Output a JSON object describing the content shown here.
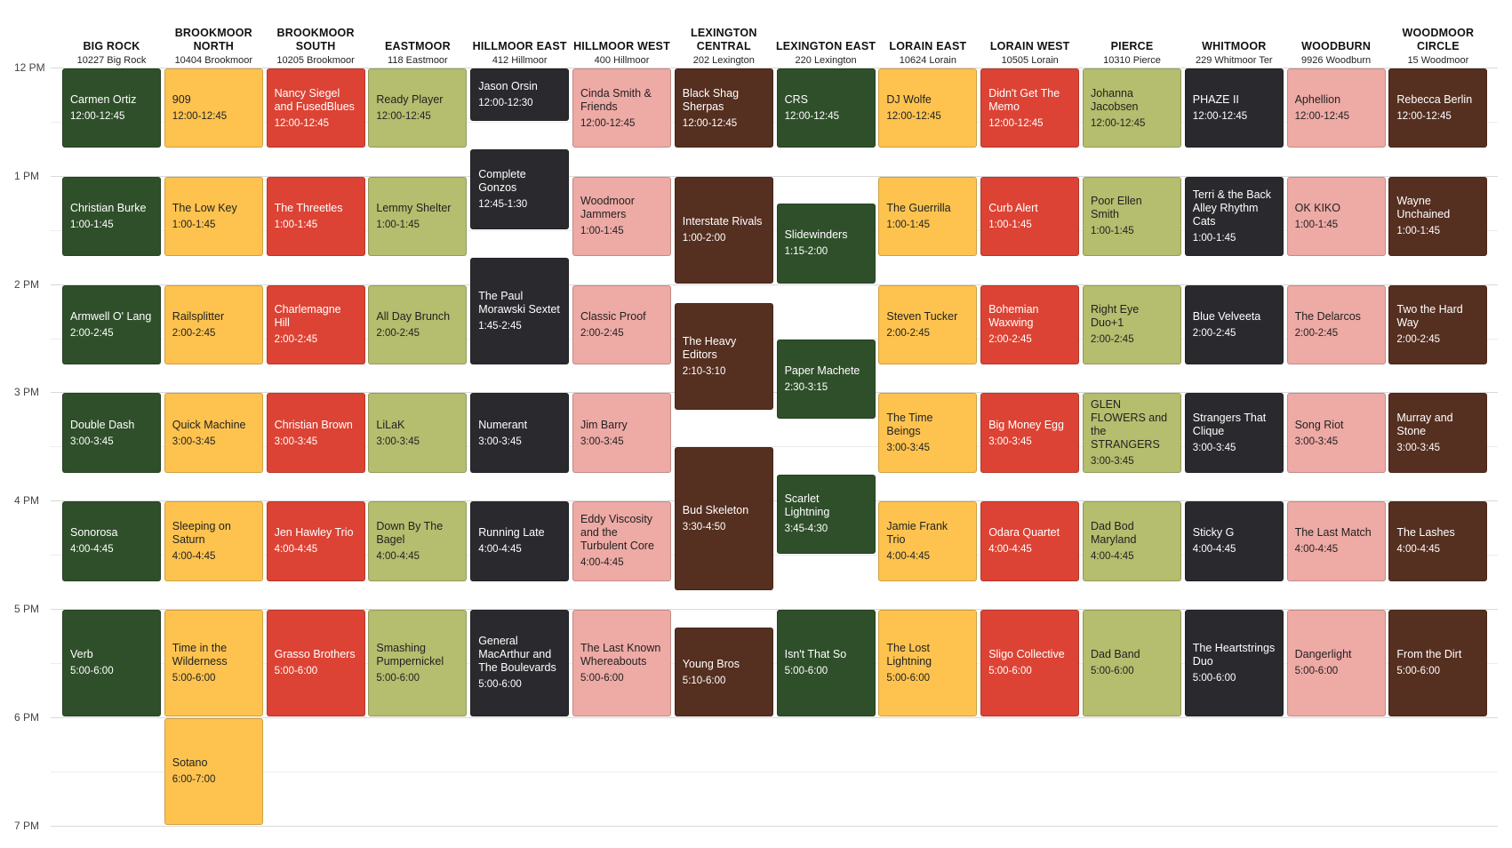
{
  "start_hour": 12,
  "end_hour": 19,
  "hour_labels": [
    "12 PM",
    "1 PM",
    "2 PM",
    "3 PM",
    "4 PM",
    "5 PM",
    "6 PM",
    "7 PM"
  ],
  "venues": [
    {
      "name": "BIG ROCK",
      "address": "10227 Big Rock",
      "color": "#2f4f2a",
      "text_color": "#ffffff",
      "events": [
        {
          "name": "Carmen Ortiz",
          "time": "12:00-12:45",
          "start": "12:00",
          "end": "12:45"
        },
        {
          "name": "Christian Burke",
          "time": "1:00-1:45",
          "start": "13:00",
          "end": "13:45"
        },
        {
          "name": "Armwell O' Lang",
          "time": "2:00-2:45",
          "start": "14:00",
          "end": "14:45"
        },
        {
          "name": "Double Dash",
          "time": "3:00-3:45",
          "start": "15:00",
          "end": "15:45"
        },
        {
          "name": "Sonorosa",
          "time": "4:00-4:45",
          "start": "16:00",
          "end": "16:45"
        },
        {
          "name": "Verb",
          "time": "5:00-6:00",
          "start": "17:00",
          "end": "18:00"
        }
      ]
    },
    {
      "name": "BROOKMOOR NORTH",
      "address": "10404 Brookmoor",
      "color": "#fec34f",
      "text_color": "#222222",
      "events": [
        {
          "name": "909",
          "time": "12:00-12:45",
          "start": "12:00",
          "end": "12:45"
        },
        {
          "name": "The Low Key",
          "time": "1:00-1:45",
          "start": "13:00",
          "end": "13:45"
        },
        {
          "name": "Railsplitter",
          "time": "2:00-2:45",
          "start": "14:00",
          "end": "14:45"
        },
        {
          "name": "Quick Machine",
          "time": "3:00-3:45",
          "start": "15:00",
          "end": "15:45"
        },
        {
          "name": "Sleeping on Saturn",
          "time": "4:00-4:45",
          "start": "16:00",
          "end": "16:45"
        },
        {
          "name": "Time in the Wilderness",
          "time": "5:00-6:00",
          "start": "17:00",
          "end": "18:00"
        },
        {
          "name": "Sotano",
          "time": "6:00-7:00",
          "start": "18:00",
          "end": "19:00"
        }
      ]
    },
    {
      "name": "BROOKMOOR SOUTH",
      "address": "10205 Brookmoor",
      "color": "#dc4334",
      "text_color": "#ffffff",
      "events": [
        {
          "name": "Nancy Siegel and FusedBlues",
          "time": "12:00-12:45",
          "start": "12:00",
          "end": "12:45"
        },
        {
          "name": "The Threetles",
          "time": "1:00-1:45",
          "start": "13:00",
          "end": "13:45"
        },
        {
          "name": "Charlemagne Hill",
          "time": "2:00-2:45",
          "start": "14:00",
          "end": "14:45"
        },
        {
          "name": "Christian Brown",
          "time": "3:00-3:45",
          "start": "15:00",
          "end": "15:45"
        },
        {
          "name": "Jen Hawley Trio",
          "time": "4:00-4:45",
          "start": "16:00",
          "end": "16:45"
        },
        {
          "name": "Grasso Brothers",
          "time": "5:00-6:00",
          "start": "17:00",
          "end": "18:00"
        }
      ]
    },
    {
      "name": "EASTMOOR",
      "address": "118 Eastmoor",
      "color": "#b5bd6e",
      "text_color": "#222222",
      "events": [
        {
          "name": "Ready Player",
          "time": "12:00-12:45",
          "start": "12:00",
          "end": "12:45"
        },
        {
          "name": "Lemmy Shelter",
          "time": "1:00-1:45",
          "start": "13:00",
          "end": "13:45"
        },
        {
          "name": "All Day Brunch",
          "time": "2:00-2:45",
          "start": "14:00",
          "end": "14:45"
        },
        {
          "name": "LiLaK",
          "time": "3:00-3:45",
          "start": "15:00",
          "end": "15:45"
        },
        {
          "name": "Down By The Bagel",
          "time": "4:00-4:45",
          "start": "16:00",
          "end": "16:45"
        },
        {
          "name": "Smashing Pumpernickel",
          "time": "5:00-6:00",
          "start": "17:00",
          "end": "18:00"
        }
      ]
    },
    {
      "name": "HILLMOOR EAST",
      "address": "412 Hillmoor",
      "color": "#2a2a2e",
      "text_color": "#ffffff",
      "events": [
        {
          "name": "Jason Orsin",
          "time": "12:00-12:30",
          "start": "12:00",
          "end": "12:30"
        },
        {
          "name": "Complete Gonzos",
          "time": "12:45-1:30",
          "start": "12:45",
          "end": "13:30"
        },
        {
          "name": "The Paul Morawski Sextet",
          "time": "1:45-2:45",
          "start": "13:45",
          "end": "14:45"
        },
        {
          "name": "Numerant",
          "time": "3:00-3:45",
          "start": "15:00",
          "end": "15:45"
        },
        {
          "name": "Running Late",
          "time": "4:00-4:45",
          "start": "16:00",
          "end": "16:45"
        },
        {
          "name": "General MacArthur and The Boulevards",
          "time": "5:00-6:00",
          "start": "17:00",
          "end": "18:00"
        }
      ]
    },
    {
      "name": "HILLMOOR WEST",
      "address": "400 Hillmoor",
      "color": "#eeaaa5",
      "text_color": "#222222",
      "events": [
        {
          "name": "Cinda Smith & Friends",
          "time": "12:00-12:45",
          "start": "12:00",
          "end": "12:45"
        },
        {
          "name": "Woodmoor Jammers",
          "time": "1:00-1:45",
          "start": "13:00",
          "end": "13:45"
        },
        {
          "name": "Classic Proof",
          "time": "2:00-2:45",
          "start": "14:00",
          "end": "14:45"
        },
        {
          "name": "Jim Barry",
          "time": "3:00-3:45",
          "start": "15:00",
          "end": "15:45"
        },
        {
          "name": "Eddy Viscosity and the Turbulent Core",
          "time": "4:00-4:45",
          "start": "16:00",
          "end": "16:45"
        },
        {
          "name": "The Last Known Whereabouts",
          "time": "5:00-6:00",
          "start": "17:00",
          "end": "18:00"
        }
      ]
    },
    {
      "name": "LEXINGTON CENTRAL",
      "address": "202 Lexington",
      "color": "#552f20",
      "text_color": "#ffffff",
      "events": [
        {
          "name": "Black Shag Sherpas",
          "time": "12:00-12:45",
          "start": "12:00",
          "end": "12:45"
        },
        {
          "name": "Interstate Rivals",
          "time": "1:00-2:00",
          "start": "13:00",
          "end": "14:00"
        },
        {
          "name": "The Heavy Editors",
          "time": "2:10-3:10",
          "start": "14:10",
          "end": "15:10"
        },
        {
          "name": "Bud Skeleton",
          "time": "3:30-4:50",
          "start": "15:30",
          "end": "16:50"
        },
        {
          "name": "Young Bros",
          "time": "5:10-6:00",
          "start": "17:10",
          "end": "18:00"
        }
      ]
    },
    {
      "name": "LEXINGTON EAST",
      "address": "220 Lexington",
      "color": "#2f4f2a",
      "text_color": "#ffffff",
      "events": [
        {
          "name": "CRS",
          "time": "12:00-12:45",
          "start": "12:00",
          "end": "12:45"
        },
        {
          "name": "Slidewinders",
          "time": "1:15-2:00",
          "start": "13:15",
          "end": "14:00"
        },
        {
          "name": "Paper Machete",
          "time": "2:30-3:15",
          "start": "14:30",
          "end": "15:15"
        },
        {
          "name": "Scarlet Lightning",
          "time": "3:45-4:30",
          "start": "15:45",
          "end": "16:30"
        },
        {
          "name": "Isn't That So",
          "time": "5:00-6:00",
          "start": "17:00",
          "end": "18:00"
        }
      ]
    },
    {
      "name": "LORAIN EAST",
      "address": "10624 Lorain",
      "color": "#fec34f",
      "text_color": "#222222",
      "events": [
        {
          "name": "DJ Wolfe",
          "time": "12:00-12:45",
          "start": "12:00",
          "end": "12:45"
        },
        {
          "name": "The Guerrilla",
          "time": "1:00-1:45",
          "start": "13:00",
          "end": "13:45"
        },
        {
          "name": "Steven Tucker",
          "time": "2:00-2:45",
          "start": "14:00",
          "end": "14:45"
        },
        {
          "name": "The Time Beings",
          "time": "3:00-3:45",
          "start": "15:00",
          "end": "15:45"
        },
        {
          "name": "Jamie Frank Trio",
          "time": "4:00-4:45",
          "start": "16:00",
          "end": "16:45"
        },
        {
          "name": "The Lost Lightning",
          "time": "5:00-6:00",
          "start": "17:00",
          "end": "18:00"
        }
      ]
    },
    {
      "name": "LORAIN WEST",
      "address": "10505 Lorain",
      "color": "#dc4334",
      "text_color": "#ffffff",
      "events": [
        {
          "name": "Didn't Get The Memo",
          "time": "12:00-12:45",
          "start": "12:00",
          "end": "12:45"
        },
        {
          "name": "Curb Alert",
          "time": "1:00-1:45",
          "start": "13:00",
          "end": "13:45"
        },
        {
          "name": "Bohemian Waxwing",
          "time": "2:00-2:45",
          "start": "14:00",
          "end": "14:45"
        },
        {
          "name": "Big Money Egg",
          "time": "3:00-3:45",
          "start": "15:00",
          "end": "15:45"
        },
        {
          "name": "Odara Quartet",
          "time": "4:00-4:45",
          "start": "16:00",
          "end": "16:45"
        },
        {
          "name": "Sligo Collective",
          "time": "5:00-6:00",
          "start": "17:00",
          "end": "18:00"
        }
      ]
    },
    {
      "name": "PIERCE",
      "address": "10310 Pierce",
      "color": "#b5bd6e",
      "text_color": "#222222",
      "events": [
        {
          "name": "Johanna Jacobsen",
          "time": "12:00-12:45",
          "start": "12:00",
          "end": "12:45"
        },
        {
          "name": "Poor Ellen Smith",
          "time": "1:00-1:45",
          "start": "13:00",
          "end": "13:45"
        },
        {
          "name": "Right Eye Duo+1",
          "time": "2:00-2:45",
          "start": "14:00",
          "end": "14:45"
        },
        {
          "name": "GLEN FLOWERS and the STRANGERS",
          "time": "3:00-3:45",
          "start": "15:00",
          "end": "15:45"
        },
        {
          "name": "Dad Bod Maryland",
          "time": "4:00-4:45",
          "start": "16:00",
          "end": "16:45"
        },
        {
          "name": "Dad Band",
          "time": "5:00-6:00",
          "start": "17:00",
          "end": "18:00"
        }
      ]
    },
    {
      "name": "WHITMOOR",
      "address": "229 Whitmoor Ter",
      "color": "#2a2a2e",
      "text_color": "#ffffff",
      "events": [
        {
          "name": "PHAZE II",
          "time": "12:00-12:45",
          "start": "12:00",
          "end": "12:45"
        },
        {
          "name": "Terri & the Back Alley Rhythm Cats",
          "time": "1:00-1:45",
          "start": "13:00",
          "end": "13:45"
        },
        {
          "name": "Blue Velveeta",
          "time": "2:00-2:45",
          "start": "14:00",
          "end": "14:45"
        },
        {
          "name": "Strangers That Clique",
          "time": "3:00-3:45",
          "start": "15:00",
          "end": "15:45"
        },
        {
          "name": "Sticky G",
          "time": "4:00-4:45",
          "start": "16:00",
          "end": "16:45"
        },
        {
          "name": "The Heartstrings Duo",
          "time": "5:00-6:00",
          "start": "17:00",
          "end": "18:00"
        }
      ]
    },
    {
      "name": "WOODBURN",
      "address": "9926 Woodburn",
      "color": "#eeaaa5",
      "text_color": "#222222",
      "events": [
        {
          "name": "Aphellion",
          "time": "12:00-12:45",
          "start": "12:00",
          "end": "12:45"
        },
        {
          "name": "OK KIKO",
          "time": "1:00-1:45",
          "start": "13:00",
          "end": "13:45"
        },
        {
          "name": "The Delarcos",
          "time": "2:00-2:45",
          "start": "14:00",
          "end": "14:45"
        },
        {
          "name": "Song Riot",
          "time": "3:00-3:45",
          "start": "15:00",
          "end": "15:45"
        },
        {
          "name": "The Last Match",
          "time": "4:00-4:45",
          "start": "16:00",
          "end": "16:45"
        },
        {
          "name": "Dangerlight",
          "time": "5:00-6:00",
          "start": "17:00",
          "end": "18:00"
        }
      ]
    },
    {
      "name": "WOODMOOR CIRCLE",
      "address": "15 Woodmoor",
      "color": "#552f20",
      "text_color": "#ffffff",
      "events": [
        {
          "name": "Rebecca Berlin",
          "time": "12:00-12:45",
          "start": "12:00",
          "end": "12:45"
        },
        {
          "name": "Wayne Unchained",
          "time": "1:00-1:45",
          "start": "13:00",
          "end": "13:45"
        },
        {
          "name": "Two the Hard Way",
          "time": "2:00-2:45",
          "start": "14:00",
          "end": "14:45"
        },
        {
          "name": "Murray and Stone",
          "time": "3:00-3:45",
          "start": "15:00",
          "end": "15:45"
        },
        {
          "name": "The Lashes",
          "time": "4:00-4:45",
          "start": "16:00",
          "end": "16:45"
        },
        {
          "name": "From the Dirt",
          "time": "5:00-6:00",
          "start": "17:00",
          "end": "18:00"
        }
      ]
    }
  ]
}
